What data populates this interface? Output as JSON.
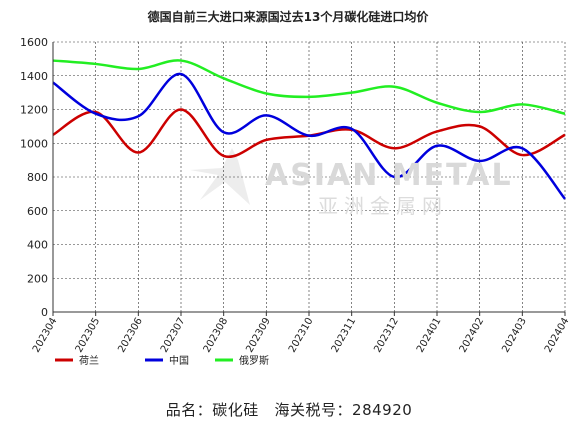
{
  "title": "德国自前三大进口来源国过去13个月碳化硅进口均价",
  "watermark": {
    "en": "ASIAN METAL",
    "cn": "亚洲金属网"
  },
  "footer": {
    "name_label": "品名：",
    "name_value": "碳化硅",
    "code_label": "海关税号：",
    "code_value": "284920"
  },
  "colors": {
    "netherlands": "#cc0000",
    "china": "#0000dd",
    "russia": "#22ee22"
  },
  "chart_data": {
    "type": "line",
    "title": "德国自前三大进口来源国过去13个月碳化硅进口均价",
    "categories": [
      "202304",
      "202305",
      "202306",
      "202307",
      "202308",
      "202309",
      "202310",
      "202311",
      "202312",
      "202401",
      "202402",
      "202403",
      "202404"
    ],
    "ylim": [
      0,
      1600
    ],
    "yticks": [
      0,
      200,
      400,
      600,
      800,
      1000,
      1200,
      1400,
      1600
    ],
    "grid": true,
    "legend_position": "bottom-left",
    "series": [
      {
        "name": "荷兰",
        "color": "#cc0000",
        "values": [
          1050,
          1185,
          945,
          1200,
          925,
          1020,
          1045,
          1080,
          970,
          1070,
          1100,
          930,
          1050
        ]
      },
      {
        "name": "中国",
        "color": "#0000dd",
        "values": [
          1360,
          1175,
          1160,
          1410,
          1065,
          1165,
          1045,
          1085,
          800,
          985,
          895,
          970,
          670
        ]
      },
      {
        "name": "俄罗斯",
        "color": "#22ee22",
        "values": [
          1490,
          1470,
          1440,
          1490,
          1385,
          1295,
          1275,
          1300,
          1335,
          1240,
          1185,
          1230,
          1175
        ]
      }
    ]
  }
}
